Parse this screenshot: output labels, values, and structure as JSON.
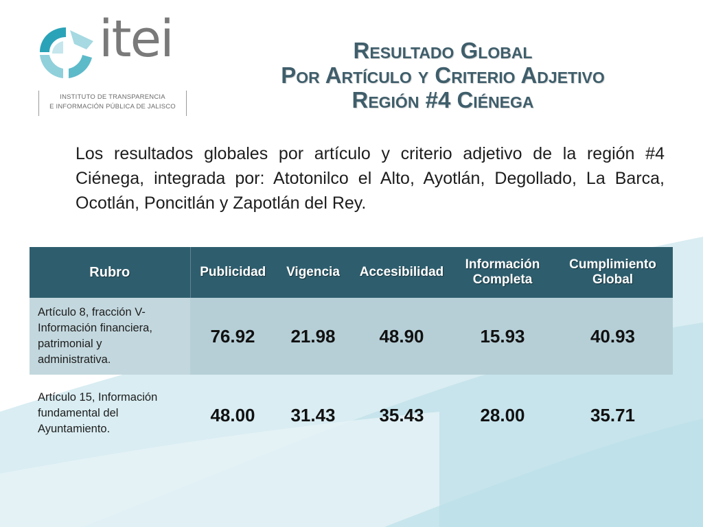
{
  "logo": {
    "wordmark": "itei",
    "subtitle_line1": "INSTITUTO DE TRANSPARENCIA",
    "subtitle_line2": "E INFORMACIÓN PÚBLICA DE JALISCO",
    "colors": {
      "mark": "#2aa3b8",
      "wordmark": "#7a7a7a"
    }
  },
  "title": {
    "line1": "Resultado Global",
    "line2": "Por Artículo y Criterio Adjetivo",
    "line3": "Región #4 Ciénega"
  },
  "intro": "Los resultados globales por artículo y criterio adjetivo de la región #4 Ciénega, integrada por: Atotonilco el Alto, Ayotlán, Degollado, La Barca, Ocotlán, Poncitlán y Zapotlán del Rey.",
  "table": {
    "headers": {
      "rubro": "Rubro",
      "publicidad": "Publicidad",
      "vigencia": "Vigencia",
      "accesibilidad": "Accesibilidad",
      "informacion_line1": "Información",
      "informacion_line2": "Completa",
      "cumplimiento_line1": "Cumplimiento",
      "cumplimiento_line2": "Global"
    },
    "rows": [
      {
        "rubro_lines": [
          "Artículo 8, fracción V-",
          "Información financiera,",
          "patrimonial y",
          "administrativa."
        ],
        "publicidad": "76.92",
        "vigencia": "21.98",
        "accesibilidad": "48.90",
        "informacion_completa": "15.93",
        "cumplimiento_global": "40.93"
      },
      {
        "rubro_lines": [
          "Artículo 15, Información",
          "fundamental del",
          "Ayuntamiento."
        ],
        "publicidad": "48.00",
        "vigencia": "31.43",
        "accesibilidad": "35.43",
        "informacion_completa": "28.00",
        "cumplimiento_global": "35.71"
      }
    ],
    "colors": {
      "header_bg": "#2e5e6e",
      "row_highlight": "#b6cfd7"
    }
  },
  "theme": {
    "title_color": "#3f5e6b",
    "swoosh_color": "#cfe7ee"
  }
}
